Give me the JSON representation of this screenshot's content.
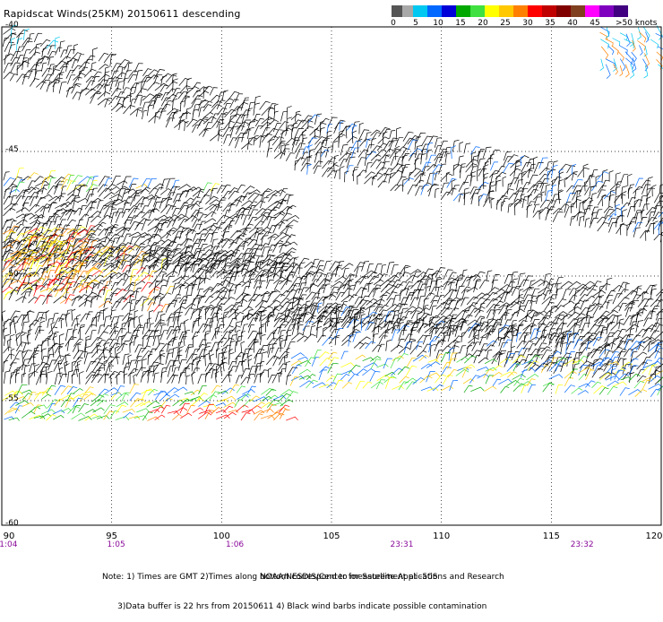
{
  "title": "Rapidscat Winds(25KM) 20150611 descending",
  "legend": {
    "colors": [
      "#555555",
      "#a8a8a8",
      "#00c8f0",
      "#0068ff",
      "#0000d8",
      "#00a800",
      "#40e040",
      "#ffff00",
      "#ffc800",
      "#ff8000",
      "#ff0000",
      "#c00000",
      "#800000",
      "#804020",
      "#ff00ff",
      "#8000c0",
      "#400080"
    ],
    "labels": [
      "0",
      "5",
      "10",
      "15",
      "20",
      "25",
      "30",
      "35",
      "40",
      "45",
      ">50 knots"
    ]
  },
  "axes": {
    "lat_labels": [
      "-40",
      "-45",
      "-50",
      "-55",
      "-60"
    ],
    "lon_labels": [
      "90",
      "95",
      "100",
      "105",
      "110",
      "115",
      "120"
    ],
    "time_labels": [
      {
        "text": "1:04",
        "lon": 90.3
      },
      {
        "text": "1:05",
        "lon": 95.2
      },
      {
        "text": "1:06",
        "lon": 100.6
      },
      {
        "text": "23:31",
        "lon": 108.2
      },
      {
        "text": "23:32",
        "lon": 116.4
      }
    ]
  },
  "map_extent": {
    "lon_min": 90,
    "lon_max": 120,
    "lat_min": -60,
    "lat_max": -40
  },
  "notes": [
    "Note: 1) Times are GMT 2)Times along bottom correspond to measurement at -50S",
    "      3)Data buffer is 22 hrs from 20150611 4) Black wind barbs indicate possible contamination"
  ],
  "credit": "NOAA/NESDIS/Center for Satellite Applications and Research"
}
